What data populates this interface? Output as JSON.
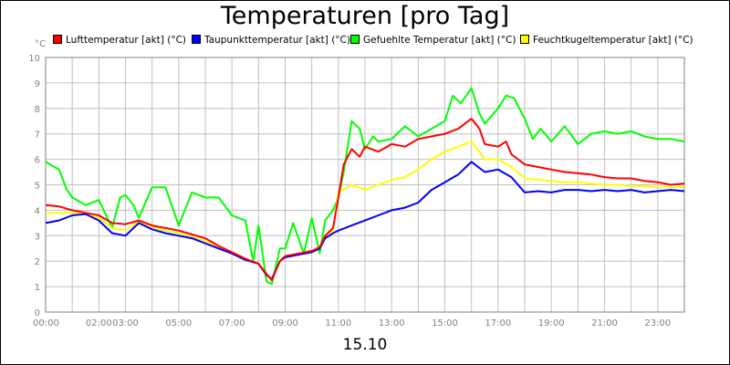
{
  "chart_data": {
    "type": "line",
    "title": "Temperaturen [pro Tag]",
    "unit": "°C",
    "date": "15.10",
    "ylim": [
      0,
      10
    ],
    "xlim": [
      0,
      24
    ],
    "grid": true,
    "legend_placement": "top",
    "x_ticks": [
      {
        "x": 0,
        "label": "00:00"
      },
      {
        "x": 2,
        "label": "02:00"
      },
      {
        "x": 3,
        "label": "03:00"
      },
      {
        "x": 5,
        "label": "05:00"
      },
      {
        "x": 7,
        "label": "07:00"
      },
      {
        "x": 9,
        "label": "09:00"
      },
      {
        "x": 11,
        "label": "11:00"
      },
      {
        "x": 13,
        "label": "13:00"
      },
      {
        "x": 15,
        "label": "15:00"
      },
      {
        "x": 17,
        "label": "17:00"
      },
      {
        "x": 19,
        "label": "19:00"
      },
      {
        "x": 21,
        "label": "21:00"
      },
      {
        "x": 23,
        "label": "23:00"
      }
    ],
    "y_ticks": [
      0,
      1,
      2,
      3,
      4,
      5,
      6,
      7,
      8,
      9,
      10
    ],
    "series": [
      {
        "name": "Lufttemperatur [akt] (°C)",
        "color": "#ff0000",
        "points": [
          [
            0,
            4.2
          ],
          [
            0.5,
            4.15
          ],
          [
            1,
            4.0
          ],
          [
            1.5,
            3.9
          ],
          [
            2,
            3.8
          ],
          [
            2.5,
            3.5
          ],
          [
            3,
            3.45
          ],
          [
            3.5,
            3.6
          ],
          [
            4,
            3.4
          ],
          [
            4.5,
            3.3
          ],
          [
            5,
            3.2
          ],
          [
            5.5,
            3.05
          ],
          [
            6,
            2.9
          ],
          [
            6.5,
            2.6
          ],
          [
            7,
            2.35
          ],
          [
            7.5,
            2.1
          ],
          [
            8,
            1.9
          ],
          [
            8.3,
            1.5
          ],
          [
            8.5,
            1.25
          ],
          [
            8.8,
            2.0
          ],
          [
            9,
            2.2
          ],
          [
            9.5,
            2.3
          ],
          [
            10,
            2.4
          ],
          [
            10.3,
            2.55
          ],
          [
            10.5,
            3.0
          ],
          [
            10.8,
            3.3
          ],
          [
            11,
            4.5
          ],
          [
            11.2,
            5.8
          ],
          [
            11.5,
            6.4
          ],
          [
            11.8,
            6.1
          ],
          [
            12,
            6.5
          ],
          [
            12.5,
            6.3
          ],
          [
            13,
            6.6
          ],
          [
            13.5,
            6.5
          ],
          [
            14,
            6.8
          ],
          [
            14.5,
            6.9
          ],
          [
            15,
            7.0
          ],
          [
            15.5,
            7.2
          ],
          [
            16,
            7.6
          ],
          [
            16.3,
            7.2
          ],
          [
            16.5,
            6.6
          ],
          [
            17,
            6.5
          ],
          [
            17.3,
            6.7
          ],
          [
            17.5,
            6.2
          ],
          [
            18,
            5.8
          ],
          [
            18.5,
            5.7
          ],
          [
            19,
            5.6
          ],
          [
            19.5,
            5.5
          ],
          [
            20,
            5.45
          ],
          [
            20.5,
            5.4
          ],
          [
            21,
            5.3
          ],
          [
            21.5,
            5.25
          ],
          [
            22,
            5.25
          ],
          [
            22.5,
            5.15
          ],
          [
            23,
            5.1
          ],
          [
            23.5,
            5.0
          ],
          [
            24,
            5.05
          ]
        ]
      },
      {
        "name": "Taupunkttemperatur [akt] (°C)",
        "color": "#0000ff",
        "points": [
          [
            0,
            3.5
          ],
          [
            0.5,
            3.6
          ],
          [
            1,
            3.8
          ],
          [
            1.5,
            3.85
          ],
          [
            2,
            3.6
          ],
          [
            2.5,
            3.1
          ],
          [
            3,
            3.0
          ],
          [
            3.5,
            3.5
          ],
          [
            4,
            3.25
          ],
          [
            4.5,
            3.1
          ],
          [
            5,
            3.0
          ],
          [
            5.5,
            2.9
          ],
          [
            6,
            2.7
          ],
          [
            6.5,
            2.5
          ],
          [
            7,
            2.3
          ],
          [
            7.5,
            2.05
          ],
          [
            8,
            1.9
          ],
          [
            8.3,
            1.45
          ],
          [
            8.5,
            1.3
          ],
          [
            8.8,
            2.0
          ],
          [
            9,
            2.15
          ],
          [
            9.5,
            2.25
          ],
          [
            10,
            2.35
          ],
          [
            10.3,
            2.5
          ],
          [
            10.5,
            2.9
          ],
          [
            10.8,
            3.1
          ],
          [
            11,
            3.2
          ],
          [
            11.5,
            3.4
          ],
          [
            12,
            3.6
          ],
          [
            12.5,
            3.8
          ],
          [
            13,
            4.0
          ],
          [
            13.5,
            4.1
          ],
          [
            14,
            4.3
          ],
          [
            14.5,
            4.8
          ],
          [
            15,
            5.1
          ],
          [
            15.5,
            5.4
          ],
          [
            16,
            5.9
          ],
          [
            16.5,
            5.5
          ],
          [
            17,
            5.6
          ],
          [
            17.5,
            5.3
          ],
          [
            18,
            4.7
          ],
          [
            18.5,
            4.75
          ],
          [
            19,
            4.7
          ],
          [
            19.5,
            4.8
          ],
          [
            20,
            4.8
          ],
          [
            20.5,
            4.75
          ],
          [
            21,
            4.8
          ],
          [
            21.5,
            4.75
          ],
          [
            22,
            4.8
          ],
          [
            22.5,
            4.7
          ],
          [
            23,
            4.75
          ],
          [
            23.5,
            4.8
          ],
          [
            24,
            4.75
          ]
        ]
      },
      {
        "name": "Gefuehlte Temperatur [akt] (°C)",
        "color": "#00ff00",
        "points": [
          [
            0,
            5.9
          ],
          [
            0.5,
            5.6
          ],
          [
            0.8,
            4.8
          ],
          [
            1,
            4.5
          ],
          [
            1.5,
            4.2
          ],
          [
            2,
            4.4
          ],
          [
            2.5,
            3.3
          ],
          [
            2.8,
            4.5
          ],
          [
            3,
            4.6
          ],
          [
            3.3,
            4.2
          ],
          [
            3.5,
            3.7
          ],
          [
            4,
            4.9
          ],
          [
            4.5,
            4.9
          ],
          [
            5,
            3.4
          ],
          [
            5.5,
            4.7
          ],
          [
            6,
            4.5
          ],
          [
            6.5,
            4.5
          ],
          [
            7,
            3.8
          ],
          [
            7.5,
            3.6
          ],
          [
            7.8,
            2.0
          ],
          [
            8,
            3.4
          ],
          [
            8.3,
            1.2
          ],
          [
            8.5,
            1.1
          ],
          [
            8.8,
            2.5
          ],
          [
            9,
            2.5
          ],
          [
            9.3,
            3.5
          ],
          [
            9.7,
            2.3
          ],
          [
            10,
            3.7
          ],
          [
            10.3,
            2.3
          ],
          [
            10.5,
            3.6
          ],
          [
            10.8,
            4.0
          ],
          [
            11,
            4.5
          ],
          [
            11.2,
            5.5
          ],
          [
            11.5,
            7.5
          ],
          [
            11.8,
            7.2
          ],
          [
            12,
            6.4
          ],
          [
            12.3,
            6.9
          ],
          [
            12.5,
            6.7
          ],
          [
            13,
            6.8
          ],
          [
            13.5,
            7.3
          ],
          [
            14,
            6.9
          ],
          [
            14.5,
            7.2
          ],
          [
            15,
            7.5
          ],
          [
            15.3,
            8.5
          ],
          [
            15.6,
            8.2
          ],
          [
            16,
            8.8
          ],
          [
            16.3,
            7.8
          ],
          [
            16.5,
            7.4
          ],
          [
            17,
            8.0
          ],
          [
            17.3,
            8.5
          ],
          [
            17.6,
            8.4
          ],
          [
            18,
            7.6
          ],
          [
            18.3,
            6.8
          ],
          [
            18.6,
            7.2
          ],
          [
            19,
            6.7
          ],
          [
            19.5,
            7.3
          ],
          [
            20,
            6.6
          ],
          [
            20.5,
            7.0
          ],
          [
            21,
            7.1
          ],
          [
            21.5,
            7.0
          ],
          [
            22,
            7.1
          ],
          [
            22.5,
            6.9
          ],
          [
            23,
            6.8
          ],
          [
            23.5,
            6.8
          ],
          [
            24,
            6.7
          ]
        ]
      },
      {
        "name": "Feuchtkugeltemperatur [akt] (°C)",
        "color": "#ffff00",
        "points": [
          [
            0,
            3.9
          ],
          [
            0.5,
            3.9
          ],
          [
            1,
            3.9
          ],
          [
            1.5,
            3.85
          ],
          [
            2,
            3.7
          ],
          [
            2.5,
            3.3
          ],
          [
            3,
            3.2
          ],
          [
            3.5,
            3.55
          ],
          [
            4,
            3.35
          ],
          [
            4.5,
            3.2
          ],
          [
            5,
            3.1
          ],
          [
            5.5,
            2.95
          ],
          [
            6,
            2.8
          ],
          [
            6.5,
            2.55
          ],
          [
            7,
            2.3
          ],
          [
            7.5,
            2.05
          ],
          [
            8,
            1.9
          ],
          [
            8.3,
            1.45
          ],
          [
            8.5,
            1.25
          ],
          [
            8.8,
            2.0
          ],
          [
            9,
            2.2
          ],
          [
            9.5,
            2.3
          ],
          [
            10,
            2.4
          ],
          [
            10.3,
            2.5
          ],
          [
            10.5,
            3.0
          ],
          [
            10.8,
            3.2
          ],
          [
            11,
            4.7
          ],
          [
            11.5,
            5.0
          ],
          [
            12,
            4.8
          ],
          [
            12.5,
            5.0
          ],
          [
            13,
            5.2
          ],
          [
            13.5,
            5.3
          ],
          [
            14,
            5.6
          ],
          [
            14.5,
            6.0
          ],
          [
            15,
            6.3
          ],
          [
            15.5,
            6.5
          ],
          [
            16,
            6.7
          ],
          [
            16.5,
            6.0
          ],
          [
            17,
            6.0
          ],
          [
            17.5,
            5.7
          ],
          [
            18,
            5.25
          ],
          [
            18.5,
            5.2
          ],
          [
            19,
            5.15
          ],
          [
            19.5,
            5.1
          ],
          [
            20,
            5.1
          ],
          [
            20.5,
            5.05
          ],
          [
            21,
            5.0
          ],
          [
            21.5,
            5.0
          ],
          [
            22,
            4.95
          ],
          [
            22.5,
            4.95
          ],
          [
            23,
            4.9
          ],
          [
            23.5,
            4.9
          ],
          [
            24,
            4.9
          ]
        ]
      }
    ]
  }
}
